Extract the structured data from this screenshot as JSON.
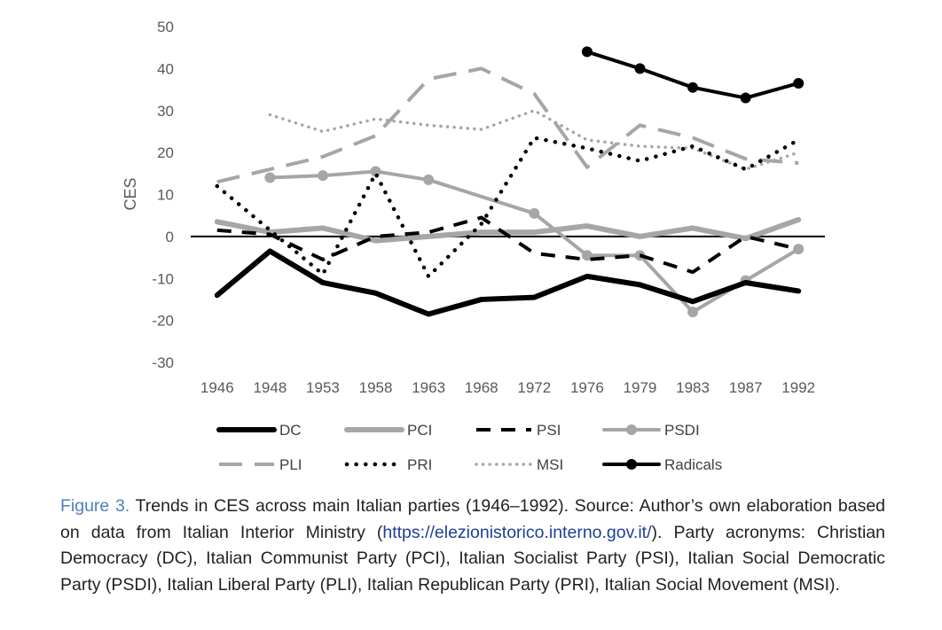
{
  "chart_data": {
    "type": "line",
    "title": "",
    "xlabel": "",
    "ylabel": "CES",
    "ylim": [
      -30,
      50
    ],
    "yticks": [
      50,
      40,
      30,
      20,
      10,
      0,
      -10,
      -20,
      -30
    ],
    "categories": [
      "1946",
      "1948",
      "1953",
      "1958",
      "1963",
      "1968",
      "1972",
      "1976",
      "1979",
      "1983",
      "1987",
      "1992"
    ],
    "legend_position": "bottom",
    "series": [
      {
        "name": "DC",
        "style": "solid-thick",
        "color": "#000000",
        "values": [
          -14,
          -3.5,
          -11,
          -13.5,
          -18.5,
          -15,
          -14.5,
          -9.5,
          -11.5,
          -15.5,
          -11,
          -13
        ]
      },
      {
        "name": "PCI",
        "style": "solid-thick",
        "color": "#a6a6a6",
        "values": [
          3.5,
          1,
          2,
          -1,
          0,
          1,
          1,
          2.5,
          0,
          2,
          -0.5,
          4
        ]
      },
      {
        "name": "PSI",
        "style": "dashed",
        "color": "#000000",
        "values": [
          1.5,
          0.5,
          -5.5,
          0,
          1,
          4.5,
          -4,
          -5.5,
          -4.5,
          -8.5,
          0,
          -3
        ]
      },
      {
        "name": "PSDI",
        "style": "solid-marker",
        "color": "#a6a6a6",
        "values": [
          null,
          14,
          14.5,
          15.5,
          13.5,
          null,
          5.5,
          -4.5,
          -4.5,
          -18,
          -10.5,
          -3
        ]
      },
      {
        "name": "PLI",
        "style": "long-dash",
        "color": "#a6a6a6",
        "values": [
          13,
          16,
          19,
          24,
          37.5,
          40,
          34,
          16.5,
          26.5,
          23.5,
          18.5,
          17.5
        ]
      },
      {
        "name": "PRI",
        "style": "dotted",
        "color": "#000000",
        "values": [
          12,
          1.5,
          -9,
          15,
          -9.5,
          3,
          23.5,
          21,
          18,
          21.5,
          16,
          23
        ]
      },
      {
        "name": "MSI",
        "style": "dotted-light",
        "color": "#a6a6a6",
        "values": [
          null,
          29,
          25,
          28,
          26.5,
          25.5,
          30,
          23,
          21.5,
          21,
          16,
          20
        ]
      },
      {
        "name": "Radicals",
        "style": "solid-marker",
        "color": "#000000",
        "values": [
          null,
          null,
          null,
          null,
          null,
          null,
          null,
          44,
          40,
          35.5,
          33,
          36.5
        ]
      }
    ]
  },
  "caption": {
    "label": "Figure 3.",
    "text_before_link": " Trends in CES across main Italian parties (1946–1992). Source: Author’s own elaboration based on data from Italian Interior Ministry (",
    "link": "https://elezionistorico.interno.gov.it/",
    "text_after_link": "). Party acronyms: Christian Democracy (DC), Italian Communist Party (PCI), Italian Socialist Party (PSI), Italian Social Democratic Party (PSDI), Italian Liberal Party (PLI), Italian Republican Party (PRI), Italian Social Movement (MSI)."
  }
}
